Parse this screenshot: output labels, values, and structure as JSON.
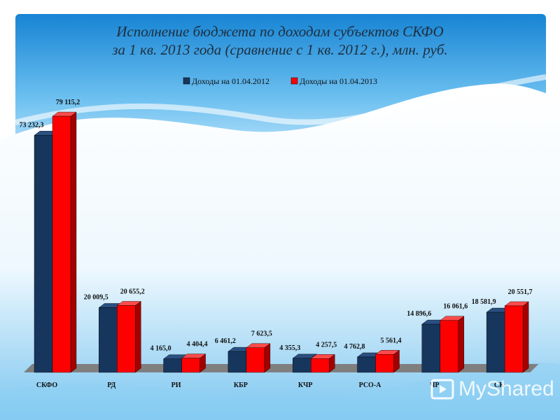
{
  "title_line1": "Исполнение бюджета по доходам субъектов СКФО",
  "title_line2": "за 1 кв. 2013 года (сравнение с 1 кв. 2012 г.), млн. руб.",
  "watermark": {
    "text": "MyShared",
    "icon": "slide-play-icon"
  },
  "colors": {
    "series1": "#17365d",
    "series2": "#ff0000",
    "floor": "#7f7f7f",
    "sky": "#1e8ed8"
  },
  "chart_data": {
    "type": "bar",
    "title": "Исполнение бюджета по доходам субъектов СКФО за 1 кв. 2013 года (сравнение с 1 кв. 2012 г.), млн. руб.",
    "categories": [
      "СКФО",
      "РД",
      "РИ",
      "КБР",
      "КЧР",
      "РСО-А",
      "ЧР",
      "СК"
    ],
    "series": [
      {
        "name": "Доходы на 01.04.2012",
        "values": [
          73232.3,
          20009.5,
          4165.0,
          6461.2,
          4355.3,
          4762.8,
          14896.6,
          18581.9
        ]
      },
      {
        "name": "Доходы на 01.04.2013",
        "values": [
          79115.2,
          20655.2,
          4404.4,
          7623.5,
          4257.5,
          5561.4,
          16061.6,
          20551.7
        ]
      }
    ],
    "value_labels": [
      [
        "73 232,3",
        "20 009,5",
        "4 165,0",
        "6 461,2",
        "4 355,3",
        "4 762,8",
        "14 896,6",
        "18 581,9"
      ],
      [
        "79 115,2",
        "20 655,2",
        "4 404,4",
        "7 623,5",
        "4 257,5",
        "5 561,4",
        "16 061,6",
        "20 551,7"
      ]
    ],
    "ylim": [
      0,
      80000
    ],
    "legend_position": "top",
    "grid": false,
    "xlabel": "",
    "ylabel": ""
  }
}
